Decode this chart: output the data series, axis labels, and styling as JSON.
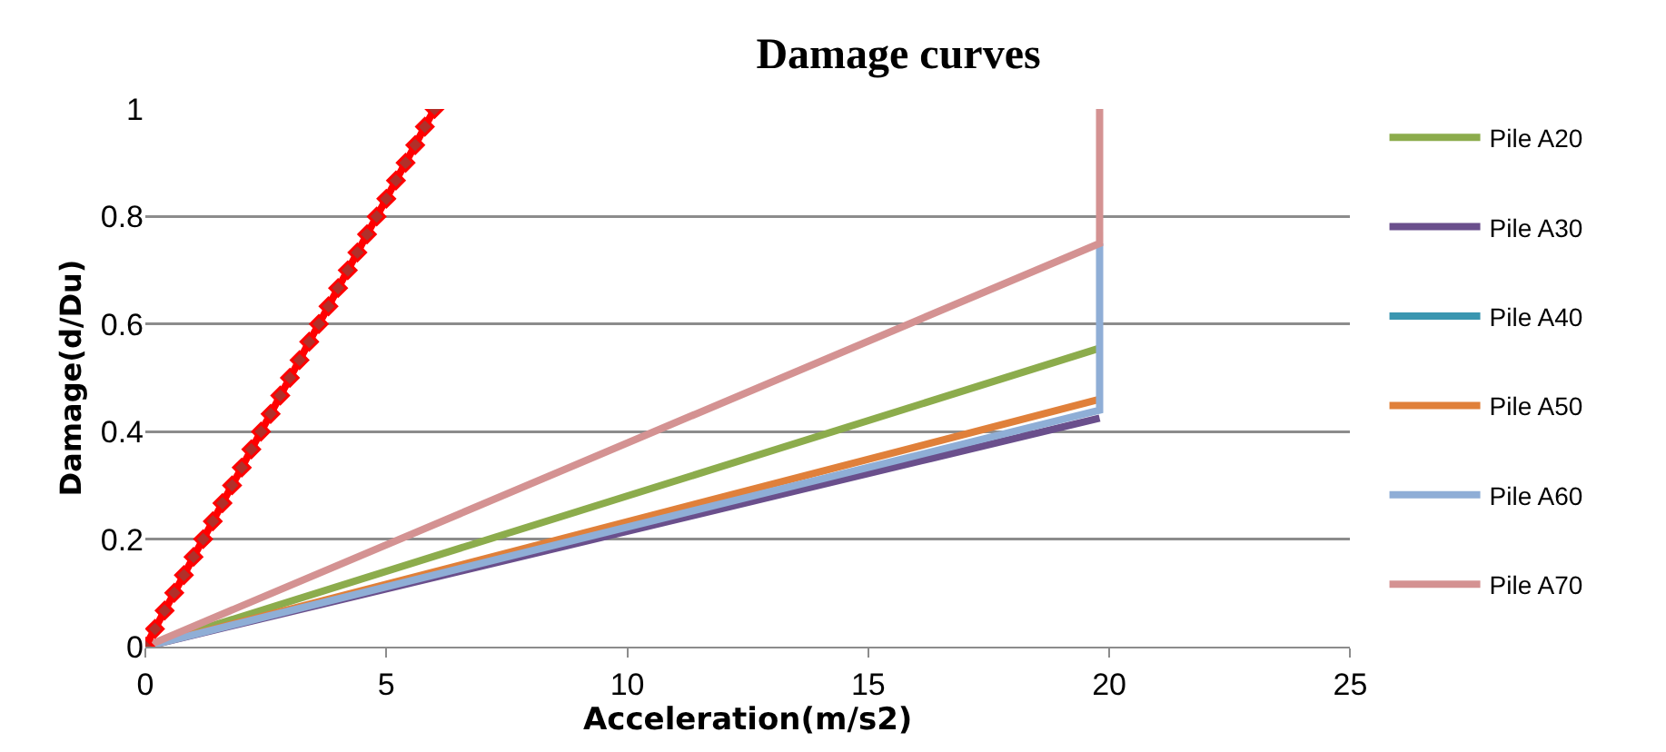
{
  "chart_data": {
    "type": "line",
    "title": "Damage curves",
    "xlabel": "Acceleration(m/s2)",
    "ylabel": "Damage(d/Du)",
    "xlim": [
      0,
      25
    ],
    "xticks": [
      0,
      5,
      10,
      15,
      20,
      25
    ],
    "ylim": [
      0,
      1
    ],
    "yticks": [
      0,
      0.2,
      0.4,
      0.6,
      0.8,
      1
    ],
    "grid": "y",
    "legend": "right",
    "marker": "none",
    "line_style": "solid",
    "series": [
      {
        "name": "Pile A20",
        "color": "#8cac4c",
        "x": [
          0,
          19.8
        ],
        "values": [
          0,
          0.555
        ]
      },
      {
        "name": "Pile A30",
        "color": "#6a4f8c",
        "x": [
          0,
          19.8
        ],
        "values": [
          0,
          0.425
        ]
      },
      {
        "name": "Pile A40",
        "color": "#3a96b0",
        "values": [
          null,
          null
        ]
      },
      {
        "name": "Pile A50",
        "color": "#e0803a",
        "x": [
          0,
          19.8
        ],
        "values": [
          0,
          0.46
        ]
      },
      {
        "name": "Pile A60",
        "color": "#8faed6",
        "x": [
          0,
          19.8,
          19.8
        ],
        "values": [
          0,
          0.44,
          0.75
        ]
      },
      {
        "name": "Pile A70",
        "color": "#d49292",
        "x": [
          0,
          19.8,
          19.8
        ],
        "values": [
          0,
          0.75,
          1
        ]
      },
      {
        "color": "#ff0000",
        "marker": "diamond",
        "x": [
          0,
          0.2,
          0.4,
          0.6,
          0.8,
          1,
          1.2,
          1.4,
          1.6,
          1.8,
          2,
          2.2,
          2.4,
          2.6,
          2.8,
          3,
          3.2,
          3.4,
          3.6,
          3.8,
          4,
          4.2,
          4.4,
          4.6,
          4.8,
          5,
          5.2,
          5.4,
          5.6,
          5.8,
          6
        ],
        "values": [
          0,
          0.033,
          0.067,
          0.1,
          0.133,
          0.167,
          0.2,
          0.233,
          0.267,
          0.3,
          0.333,
          0.367,
          0.4,
          0.433,
          0.467,
          0.5,
          0.533,
          0.567,
          0.6,
          0.633,
          0.667,
          0.7,
          0.733,
          0.767,
          0.8,
          0.833,
          0.867,
          0.9,
          0.933,
          0.967,
          1
        ]
      }
    ]
  }
}
